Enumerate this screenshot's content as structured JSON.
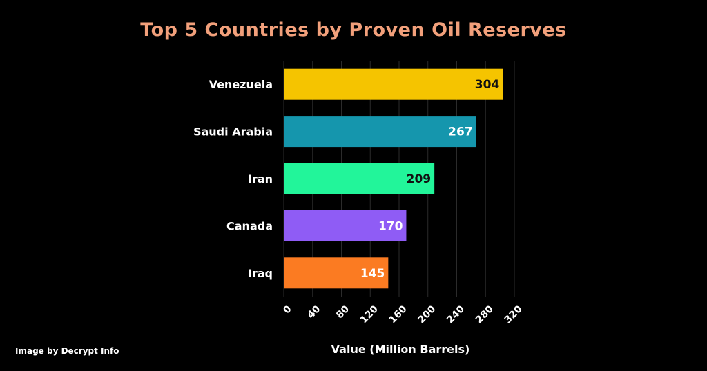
{
  "chart_data": {
    "type": "bar",
    "orientation": "horizontal",
    "title": "Top 5 Countries by Proven Oil Reserves",
    "xlabel": "Value (Million Barrels)",
    "ylabel": "",
    "categories": [
      "Venezuela",
      "Saudi Arabia",
      "Iran",
      "Canada",
      "Iraq"
    ],
    "values": [
      304,
      267,
      209,
      170,
      145
    ],
    "value_labels": [
      "304",
      "267",
      "209",
      "170",
      "145"
    ],
    "colors": [
      "#f5c400",
      "#1596ad",
      "#22f59a",
      "#8f5cf5",
      "#fb7b22"
    ],
    "value_label_colors": [
      "#111111",
      "#ffffff",
      "#111111",
      "#ffffff",
      "#ffffff"
    ],
    "xlim": [
      0,
      320
    ],
    "xticks": [
      0,
      40,
      80,
      120,
      160,
      200,
      240,
      280,
      320
    ],
    "xtick_labels": [
      "0",
      "40",
      "80",
      "120",
      "160",
      "200",
      "240",
      "280",
      "320"
    ],
    "grid": "vertical",
    "legend": "none"
  },
  "footer": {
    "credit": "Image by Decrypt Info"
  },
  "colors": {
    "background": "#000000",
    "title": "#f2a07b",
    "gridline": "#2b2b2b"
  }
}
